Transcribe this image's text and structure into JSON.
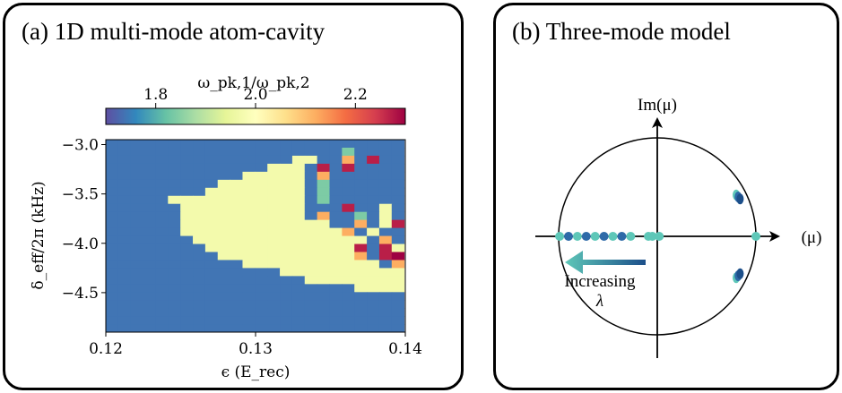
{
  "panels": {
    "a": {
      "title": "(a)  1D multi-mode atom-cavity"
    },
    "b": {
      "title": "(b) Three-mode model"
    }
  },
  "chart_data": [
    {
      "type": "heatmap",
      "colorbar": {
        "label": "ω_pk,1/ω_pk,2",
        "range": [
          1.7,
          2.3
        ],
        "ticks": [
          1.8,
          2.0,
          2.2
        ],
        "tick_labels": [
          "1.8",
          "2.0",
          "2.2"
        ],
        "colormap": "Spectral_r"
      },
      "xlabel": "ϵ (E_rec)",
      "ylabel": "δ_eff/2π  (kHz)",
      "xlim": [
        0.12,
        0.14
      ],
      "ylim": [
        -4.9,
        -2.95
      ],
      "xticks": [
        0.12,
        0.13,
        0.14
      ],
      "xtick_labels": [
        "0.12",
        "0.13",
        "0.14"
      ],
      "yticks": [
        -3.0,
        -3.5,
        -4.0,
        -4.5
      ],
      "ytick_labels": [
        "−3.0",
        "−3.5",
        "−4.0",
        "−4.5"
      ],
      "grid": {
        "x_start": 0.12,
        "x_step": 0.00083,
        "y_start": -2.95,
        "y_step": -0.0813,
        "background_value": 1.74,
        "codes": {
          "B": 1.74,
          "Y": 1.97,
          "T": 1.84,
          "O": 2.12,
          "R": 2.27,
          "P": 2.3
        },
        "rows": [
          "BBBBBBBBBBBBBBBBBBBBBBBB",
          "BBBBBBBBBBBBBBBBBBBTBBBB",
          "BBBBBBBBBBBBBBBYYBBOBRBB",
          "BBBBBBBBBBBBBYYYBRBRBBBB",
          "BBBBBBBBBBBYYYYYBOBBBBBB",
          "BBBBBBBBBYYYYYYYBTBBBBBB",
          "BBBBBBBBYYYYYYYYBTBBBBBB",
          "BBBBBYYYYYYYYYYYBTBBBBBB",
          "BBBBBBYYYYYYYYYYBBBRBBYB",
          "BBBBBBYYYYYYYYYYBOBBTBYB",
          "BBBBBBYYYYYYYYYYYYBBOBYR",
          "BBBBBBYYYYYYYYYYYYYOBYBB",
          "BBBBBBBYYYYYYYYYYYYYYBOB",
          "BBBBBBBBYYYYYYYYYYYYRBRY",
          "BBBBBBBBBYYYYYYYYYYYOBRP",
          "BBBBBBBBBBBYYYYYYYYYYYBO",
          "BBBBBBBBBBBBBBYYYYYYYYYY",
          "BBBBBBBBBBBBBBBBYYYYYYYY",
          "BBBBBBBBBBBBBBBBBBBBYYYY",
          "BBBBBBBBBBBBBBBBBBBBBBBB",
          "BBBBBBBBBBBBBBBBBBBBBBBB",
          "BBBBBBBBBBBBBBBBBBBBBBBB",
          "BBBBBBBBBBBBBBBBBBBBBBBB",
          "BBBBBBBBBBBBBBBBBBBBBBBB"
        ]
      }
    },
    {
      "type": "scatter",
      "xlabel": "(μ)",
      "ylabel": "Im(μ)",
      "annotation": {
        "line1": "Increasing",
        "line2": "λ"
      },
      "circle_radius": 1.0,
      "real_axis_points": [
        -0.99,
        -0.9,
        -0.81,
        -0.72,
        -0.63,
        -0.54,
        -0.45,
        -0.36,
        -0.27,
        -0.09,
        -0.05,
        0.02,
        1.0
      ],
      "complex_pairs": {
        "re": [
          0.8,
          0.82,
          0.84
        ],
        "im": [
          0.42,
          0.4,
          0.38
        ]
      },
      "colors": {
        "teal": "#5ec7b8",
        "blue": "#2e6aa8",
        "dark": "#1c4f8a"
      }
    }
  ]
}
